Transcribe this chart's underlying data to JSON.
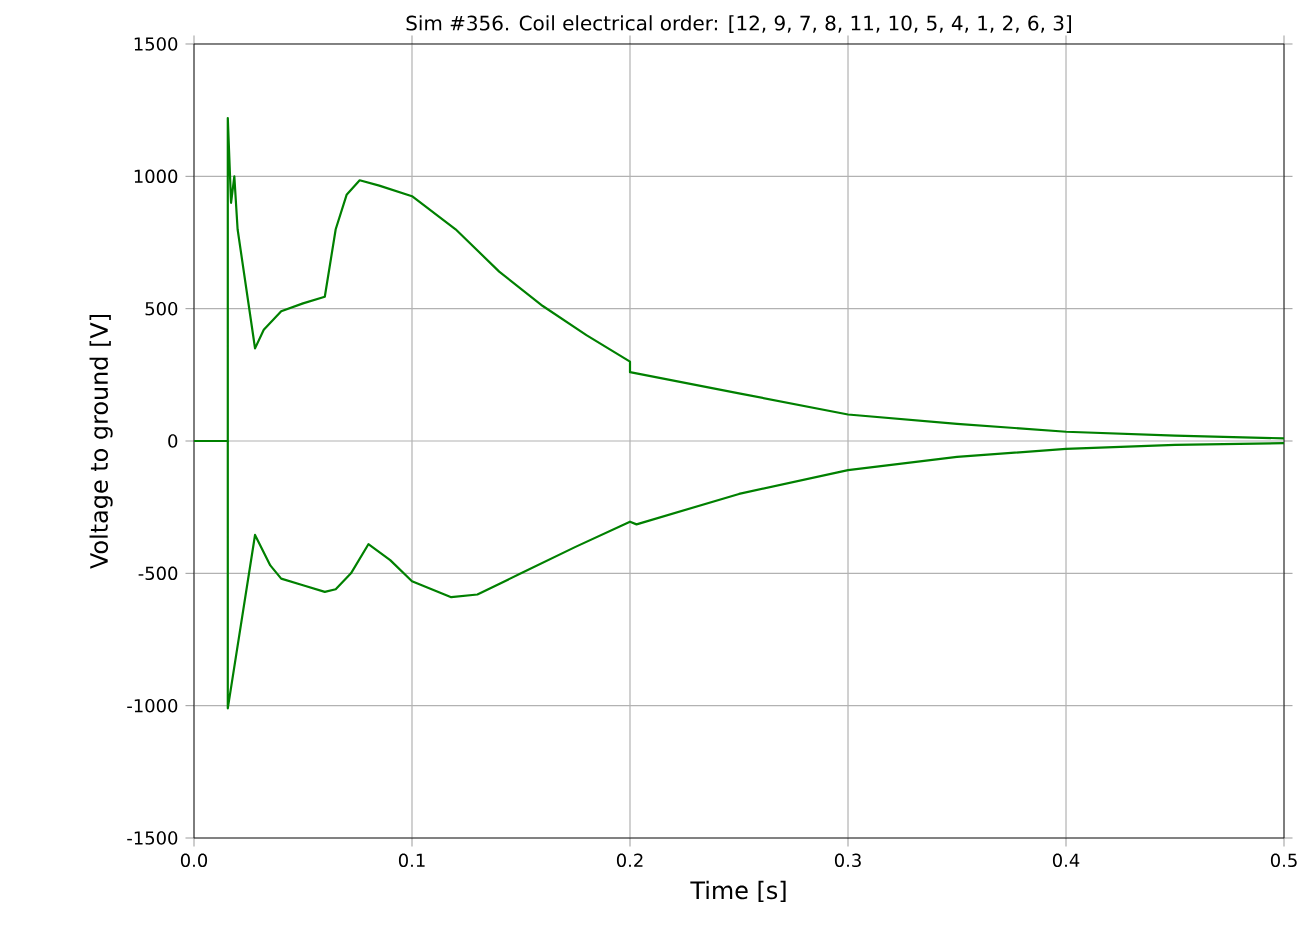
{
  "chart_data": {
    "type": "line",
    "title": "Sim #356. Coil electrical order: [12, 9, 7, 8, 11, 10, 5, 4, 1, 2, 6, 3]",
    "xlabel": "Time [s]",
    "ylabel": "Voltage to ground [V]",
    "xlim": [
      0,
      0.5
    ],
    "ylim": [
      -1500,
      1500
    ],
    "xticks": [
      {
        "value": 0,
        "label": "0.0"
      },
      0.1,
      0.2,
      0.3,
      0.4,
      0.5
    ],
    "yticks": [
      -1500,
      -1000,
      -500,
      0,
      500,
      1000,
      1500
    ],
    "grid": true,
    "series": [
      {
        "color": "#008000",
        "x": [
          0,
          0.0155,
          0.0155,
          0.017,
          0.0185,
          0.02,
          0.028,
          0.032,
          0.04,
          0.05,
          0.06,
          0.065,
          0.07,
          0.076,
          0.085,
          0.1,
          0.12,
          0.14,
          0.16,
          0.18,
          0.2,
          0.2,
          0.25,
          0.3,
          0.35,
          0.4,
          0.45,
          0.5
        ],
        "values": [
          0,
          0,
          1220,
          900,
          1000,
          800,
          350,
          420,
          490,
          520,
          545,
          800,
          930,
          985,
          965,
          925,
          800,
          640,
          510,
          400,
          300,
          260,
          180,
          100,
          65,
          35,
          20,
          10
        ]
      },
      {
        "color": "#008000",
        "x": [
          0.0155,
          0.0155,
          0.028,
          0.035,
          0.04,
          0.05,
          0.06,
          0.065,
          0.072,
          0.08,
          0.09,
          0.1,
          0.118,
          0.13,
          0.15,
          0.175,
          0.2,
          0.203,
          0.25,
          0.3,
          0.35,
          0.4,
          0.45,
          0.5
        ],
        "values": [
          0,
          -1010,
          -355,
          -470,
          -520,
          -545,
          -570,
          -560,
          -500,
          -390,
          -450,
          -530,
          -590,
          -580,
          -500,
          -400,
          -305,
          -315,
          -200,
          -110,
          -60,
          -30,
          -15,
          -8
        ]
      }
    ]
  }
}
